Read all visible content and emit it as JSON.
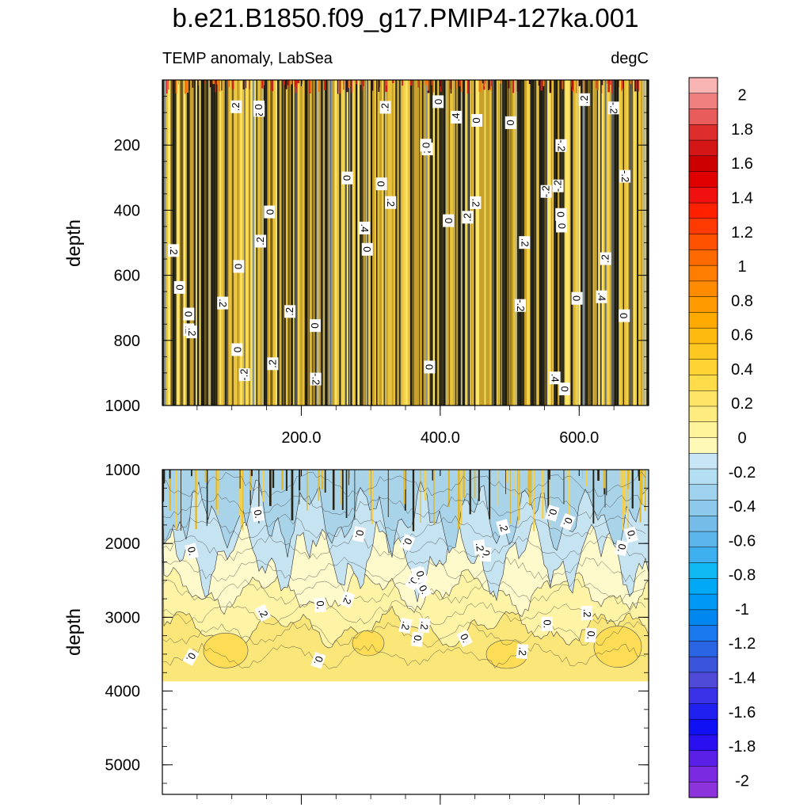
{
  "title": "b.e21.B1850.f09_g17.PMIP4-127ka.001",
  "chart_data": {
    "type": "heatmap",
    "left_string": "TEMP anomaly, LabSea",
    "right_string": "degC",
    "x_ticks": [
      200,
      400,
      600
    ],
    "x_tick_labels": [
      "200.0",
      "400.0",
      "600.0"
    ],
    "x_range": [
      0,
      700
    ],
    "panels": [
      {
        "name": "upper",
        "ylabel": "depth",
        "y_range": [
          0,
          1000
        ],
        "y_ticks": [
          200,
          400,
          600,
          800,
          1000
        ],
        "y_tick_labels": [
          "200",
          "400",
          "600",
          "800",
          "1000"
        ],
        "contour_labels": [
          "0",
          "0",
          "-.2",
          ".2",
          ".2",
          "-.2",
          ".4",
          ".2",
          ".4",
          "0",
          "0",
          ".2",
          ".2",
          ".4",
          "-.2",
          "0",
          "0",
          "-.2",
          ".2",
          ".2",
          "0",
          ".2",
          ".2",
          "0",
          ".2",
          "-.2",
          "0",
          "0",
          ".4",
          "0",
          ".2",
          "0",
          ".2",
          "0",
          "0",
          "-.2",
          ".2",
          ".2",
          "0",
          "-.2",
          "0",
          "0",
          "0",
          "-.2",
          "-.2",
          "0",
          "0",
          ".2",
          "0",
          ".2"
        ]
      },
      {
        "name": "lower",
        "ylabel": "depth",
        "y_range": [
          1000,
          5400
        ],
        "y_ticks": [
          1000,
          2000,
          3000,
          4000,
          5000
        ],
        "y_tick_labels": [
          "1000",
          "2000",
          "3000",
          "4000",
          "5000"
        ],
        "bottom_depth": 3870,
        "contour_labels": [
          "0.",
          "0.",
          "0.",
          "0.",
          "0.",
          "0.",
          "0.",
          "0.",
          "0.",
          "0.",
          "0.",
          "0.",
          "0.",
          "0.",
          "0.",
          "0.",
          "0.",
          ".2",
          ".2",
          ".2",
          ".2",
          ".2",
          ".2",
          ".2",
          ".2",
          "0.",
          "0.",
          "0."
        ]
      }
    ],
    "colorbar": {
      "min": -2.1,
      "max": 2.1,
      "step": 0.1,
      "labels": [
        "2",
        "1.8",
        "1.6",
        "1.4",
        "1.2",
        "1",
        "0.8",
        "0.6",
        "0.4",
        "0.2",
        "0",
        "-0.2",
        "-0.4",
        "-0.6",
        "-0.8",
        "-1",
        "-1.2",
        "-1.4",
        "-1.6",
        "-1.8",
        "-2"
      ],
      "colors": [
        "#f9b4b4",
        "#f08080",
        "#e85c5c",
        "#dd2d2d",
        "#d41616",
        "#cc0000",
        "#e00000",
        "#f01010",
        "#ff2000",
        "#ff3a00",
        "#ff5200",
        "#ff6a00",
        "#ff7d00",
        "#ff8c00",
        "#ff9a00",
        "#ffaa00",
        "#ffba10",
        "#ffc820",
        "#ffd333",
        "#ffdc4a",
        "#ffe466",
        "#ffec80",
        "#fff49a",
        "#fff9b8",
        "#c8e6f5",
        "#b4def2",
        "#a0d4ee",
        "#8cc9ea",
        "#75bde8",
        "#5bb4ea",
        "#3eb0f0",
        "#10b8f2",
        "#00a8f5",
        "#0098f5",
        "#0088f0",
        "#1a78ee",
        "#2a66e4",
        "#3a55dc",
        "#4f4ad8",
        "#3a32e8",
        "#2020f0",
        "#1010f5",
        "#2a10f0",
        "#5a20e8",
        "#7a2ae0",
        "#8c33dc"
      ]
    }
  }
}
